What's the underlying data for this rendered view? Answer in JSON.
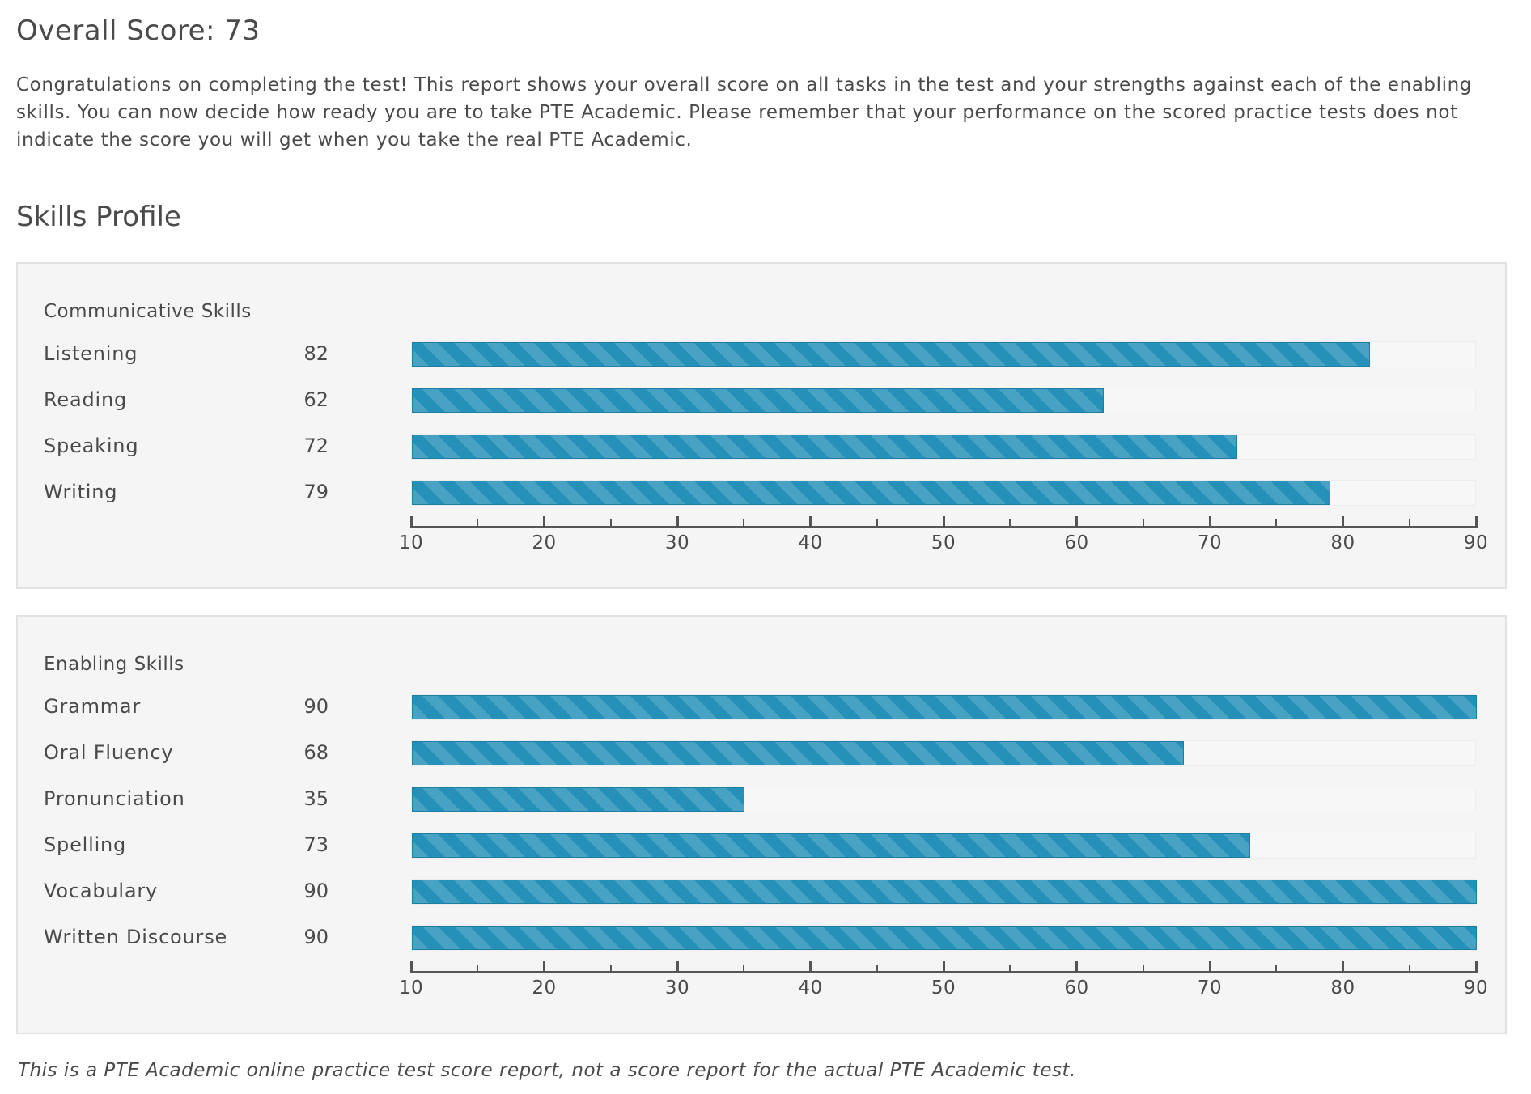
{
  "overall": {
    "title": "Overall Score: 73"
  },
  "intro": "Congratulations on completing the test! This report shows your overall score on all tasks in the test and your strengths against each of the enabling skills. You can now decide how ready you are to take PTE Academic. Please remember that your performance on the scored practice tests does not indicate the score you will get when you take the real PTE Academic.",
  "skills_profile": {
    "title": "Skills Profile"
  },
  "colors": {
    "bar": "#2590b8",
    "panel": "#f5f5f5",
    "text": "#4a4a4a"
  },
  "chart_data": [
    {
      "type": "bar",
      "orientation": "horizontal",
      "title": "Communicative Skills",
      "categories": [
        "Listening",
        "Reading",
        "Speaking",
        "Writing"
      ],
      "values": [
        82,
        62,
        72,
        79
      ],
      "xlim": [
        10,
        90
      ],
      "ticks": [
        "10",
        "20",
        "30",
        "40",
        "50",
        "60",
        "70",
        "80",
        "90"
      ]
    },
    {
      "type": "bar",
      "orientation": "horizontal",
      "title": "Enabling Skills",
      "categories": [
        "Grammar",
        "Oral Fluency",
        "Pronunciation",
        "Spelling",
        "Vocabulary",
        "Written Discourse"
      ],
      "values": [
        90,
        68,
        35,
        73,
        90,
        90
      ],
      "xlim": [
        10,
        90
      ],
      "ticks": [
        "10",
        "20",
        "30",
        "40",
        "50",
        "60",
        "70",
        "80",
        "90"
      ]
    }
  ],
  "disclaimer": "This is a PTE Academic online practice test score report, not a score report for the actual PTE Academic test."
}
